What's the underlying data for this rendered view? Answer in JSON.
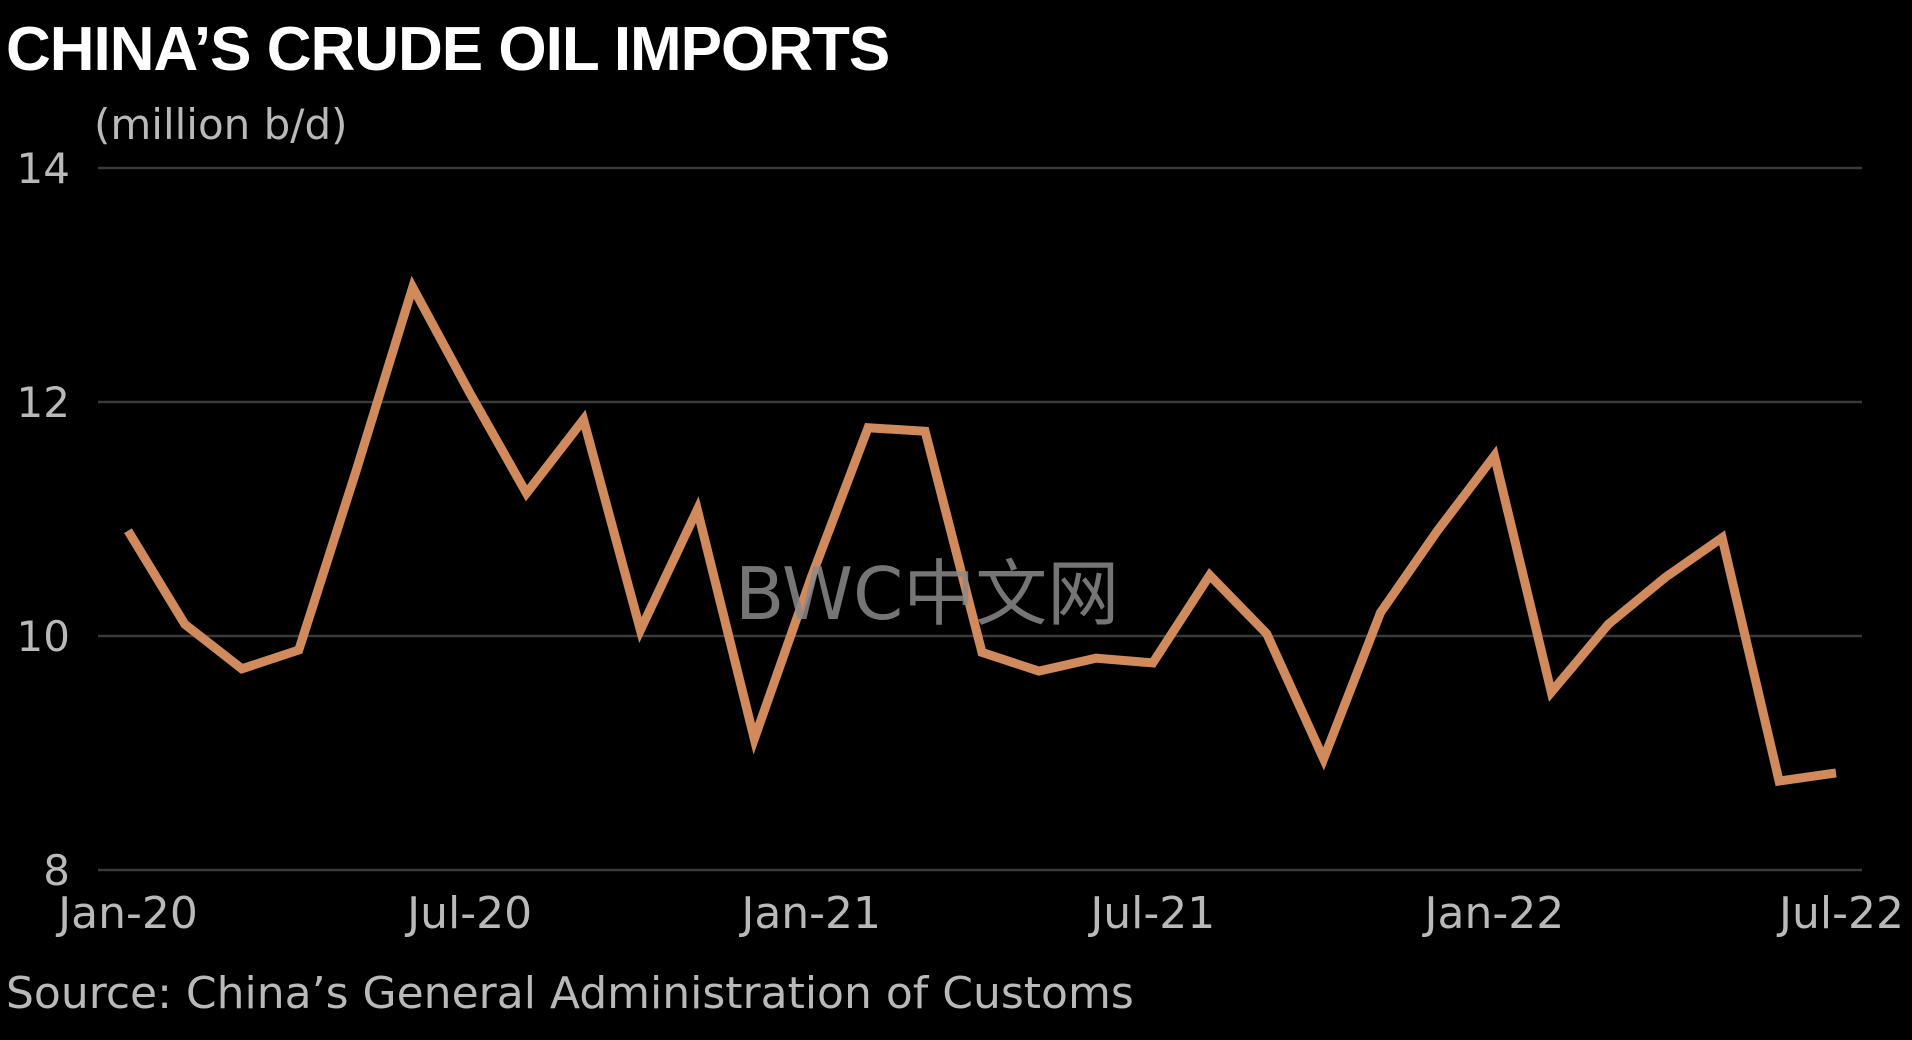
{
  "title": "CHINA’S CRUDE OIL IMPORTS",
  "unit_label": "(million b/d)",
  "source": "Source: China’s General Administration of Customs",
  "watermark": "BWC中文网",
  "colors": {
    "background": "#000000",
    "line": "#d08a5c",
    "grid": "#3a3a3a",
    "axis_text": "#b9b9b9"
  },
  "chart_data": {
    "type": "line",
    "title": "CHINA’S CRUDE OIL IMPORTS",
    "ylabel": "(million b/d)",
    "xlabel": "",
    "ylim": [
      8,
      14
    ],
    "y_ticks": [
      14,
      12,
      10,
      8
    ],
    "x_tick_labels": [
      "Jan-20",
      "Jul-20",
      "Jan-21",
      "Jul-21",
      "Jan-22",
      "Jul-22"
    ],
    "grid": "horizontal",
    "x": [
      "Jan-20",
      "Feb-20",
      "Mar-20",
      "Apr-20",
      "May-20",
      "Jun-20",
      "Jul-20",
      "Aug-20",
      "Sep-20",
      "Oct-20",
      "Nov-20",
      "Dec-20",
      "Jan-21",
      "Feb-21",
      "Mar-21",
      "Apr-21",
      "May-21",
      "Jun-21",
      "Jul-21",
      "Aug-21",
      "Sep-21",
      "Oct-21",
      "Nov-21",
      "Dec-21",
      "Jan-22",
      "Feb-22",
      "Mar-22",
      "Apr-22",
      "May-22",
      "Jun-22",
      "Jul-22"
    ],
    "series": [
      {
        "values": [
          10.9,
          10.1,
          9.72,
          9.88,
          11.4,
          12.98,
          12.08,
          11.22,
          11.85,
          10.05,
          11.08,
          9.12,
          10.5,
          11.78,
          11.75,
          9.86,
          9.7,
          9.81,
          9.77,
          10.52,
          10.02,
          8.95,
          10.2,
          10.9,
          11.54,
          9.52,
          10.1,
          10.5,
          10.84,
          8.76,
          8.83
        ]
      }
    ]
  }
}
